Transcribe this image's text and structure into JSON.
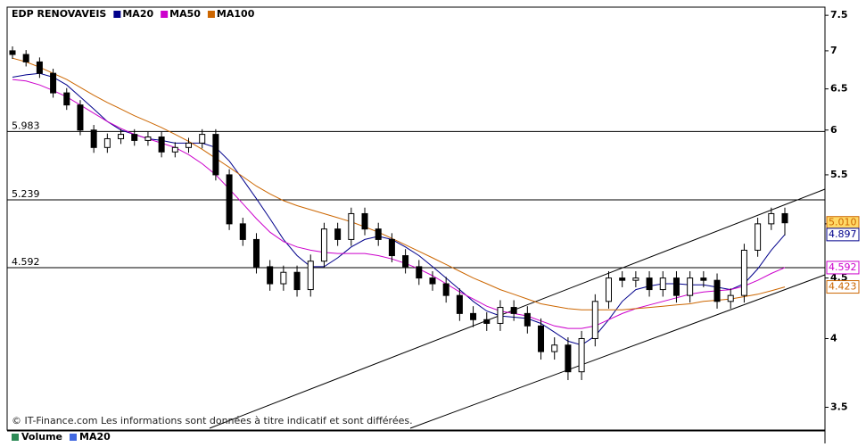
{
  "chart_data": {
    "type": "candlestick",
    "log_scale": true,
    "ylim": [
      3.36,
      7.62
    ],
    "yticks": [
      3.5,
      4,
      4.5,
      5,
      5.5,
      6,
      6.5,
      7,
      7.5
    ],
    "levels": [
      5.983,
      5.239,
      4.592
    ],
    "series": [
      {
        "name": "EDP RENOVAVEIS",
        "up_color": "#ffffff",
        "down_color": "#000000",
        "open": [
          7.0,
          6.95,
          6.85,
          6.7,
          6.45,
          6.3,
          6.0,
          5.8,
          5.9,
          5.95,
          5.88,
          5.92,
          5.75,
          5.8,
          5.85,
          5.95,
          5.5,
          5.0,
          4.85,
          4.6,
          4.45,
          4.55,
          4.4,
          4.65,
          4.95,
          4.85,
          5.1,
          4.95,
          4.85,
          4.7,
          4.6,
          4.5,
          4.45,
          4.35,
          4.2,
          4.15,
          4.12,
          4.25,
          4.2,
          4.1,
          3.9,
          3.95,
          3.75,
          4.0,
          4.3,
          4.5,
          4.48,
          4.5,
          4.4,
          4.5,
          4.35,
          4.5,
          4.48,
          4.3,
          4.35,
          4.75,
          5.0,
          5.1
        ],
        "high": [
          7.06,
          7.01,
          6.91,
          6.76,
          6.51,
          6.36,
          6.06,
          5.96,
          6.01,
          6.01,
          5.98,
          5.98,
          5.86,
          5.91,
          6.01,
          6.01,
          5.56,
          5.06,
          4.91,
          4.66,
          4.61,
          4.61,
          4.71,
          5.01,
          5.01,
          5.16,
          5.16,
          5.01,
          4.91,
          4.76,
          4.66,
          4.56,
          4.51,
          4.41,
          4.26,
          4.21,
          4.31,
          4.31,
          4.26,
          4.16,
          4.01,
          4.01,
          4.06,
          4.36,
          4.56,
          4.56,
          4.56,
          4.56,
          4.56,
          4.56,
          4.56,
          4.56,
          4.54,
          4.41,
          4.81,
          5.06,
          5.16,
          5.16
        ],
        "low": [
          6.89,
          6.79,
          6.64,
          6.39,
          6.24,
          5.94,
          5.74,
          5.74,
          5.84,
          5.82,
          5.82,
          5.69,
          5.69,
          5.74,
          5.79,
          5.44,
          4.94,
          4.79,
          4.54,
          4.39,
          4.39,
          4.34,
          4.34,
          4.59,
          4.79,
          4.79,
          4.89,
          4.79,
          4.64,
          4.54,
          4.44,
          4.39,
          4.29,
          4.14,
          4.09,
          4.06,
          4.06,
          4.14,
          4.04,
          3.84,
          3.84,
          3.69,
          3.69,
          3.94,
          4.24,
          4.42,
          4.42,
          4.34,
          4.34,
          4.29,
          4.29,
          4.42,
          4.24,
          4.24,
          4.29,
          4.69,
          4.94,
          4.89
        ],
        "close": [
          6.95,
          6.85,
          6.7,
          6.45,
          6.3,
          6.0,
          5.8,
          5.9,
          5.95,
          5.88,
          5.92,
          5.75,
          5.8,
          5.85,
          5.95,
          5.5,
          5.0,
          4.85,
          4.6,
          4.45,
          4.55,
          4.4,
          4.65,
          4.95,
          4.85,
          5.1,
          4.95,
          4.85,
          4.7,
          4.6,
          4.5,
          4.45,
          4.35,
          4.2,
          4.15,
          4.12,
          4.25,
          4.2,
          4.1,
          3.9,
          3.95,
          3.75,
          4.0,
          4.3,
          4.5,
          4.48,
          4.5,
          4.4,
          4.5,
          4.35,
          4.5,
          4.48,
          4.3,
          4.35,
          4.75,
          5.0,
          5.1,
          5.01
        ]
      },
      {
        "name": "MA20",
        "color": "#00008b",
        "values": [
          6.65,
          6.68,
          6.7,
          6.65,
          6.55,
          6.4,
          6.25,
          6.1,
          6.0,
          5.95,
          5.9,
          5.88,
          5.85,
          5.85,
          5.85,
          5.8,
          5.65,
          5.45,
          5.25,
          5.05,
          4.85,
          4.7,
          4.6,
          4.6,
          4.68,
          4.78,
          4.85,
          4.88,
          4.85,
          4.78,
          4.7,
          4.6,
          4.5,
          4.4,
          4.3,
          4.22,
          4.18,
          4.17,
          4.16,
          4.12,
          4.05,
          3.98,
          3.95,
          4.02,
          4.15,
          4.3,
          4.4,
          4.43,
          4.45,
          4.45,
          4.44,
          4.44,
          4.42,
          4.4,
          4.45,
          4.58,
          4.75,
          4.897
        ]
      },
      {
        "name": "MA50",
        "color": "#cc00cc",
        "values": [
          6.62,
          6.6,
          6.55,
          6.48,
          6.4,
          6.3,
          6.2,
          6.1,
          6.02,
          5.95,
          5.9,
          5.85,
          5.8,
          5.72,
          5.62,
          5.5,
          5.35,
          5.2,
          5.05,
          4.92,
          4.83,
          4.78,
          4.75,
          4.73,
          4.72,
          4.72,
          4.72,
          4.7,
          4.67,
          4.63,
          4.58,
          4.52,
          4.45,
          4.38,
          4.32,
          4.26,
          4.22,
          4.2,
          4.18,
          4.14,
          4.1,
          4.08,
          4.08,
          4.1,
          4.15,
          4.2,
          4.24,
          4.27,
          4.3,
          4.33,
          4.36,
          4.38,
          4.39,
          4.4,
          4.43,
          4.48,
          4.54,
          4.592
        ]
      },
      {
        "name": "MA100",
        "color": "#cc6600",
        "values": [
          6.9,
          6.85,
          6.78,
          6.7,
          6.62,
          6.52,
          6.42,
          6.33,
          6.25,
          6.17,
          6.1,
          6.03,
          5.95,
          5.87,
          5.78,
          5.68,
          5.58,
          5.48,
          5.38,
          5.3,
          5.23,
          5.18,
          5.14,
          5.1,
          5.06,
          5.02,
          4.97,
          4.92,
          4.86,
          4.8,
          4.74,
          4.68,
          4.62,
          4.56,
          4.5,
          4.45,
          4.4,
          4.36,
          4.32,
          4.28,
          4.26,
          4.24,
          4.23,
          4.23,
          4.23,
          4.23,
          4.24,
          4.25,
          4.26,
          4.27,
          4.28,
          4.3,
          4.31,
          4.32,
          4.34,
          4.36,
          4.39,
          4.423
        ]
      }
    ],
    "price_labels": [
      {
        "value": 5.01,
        "label": "5.010",
        "color": "#cc6600",
        "background": "#ffd966"
      },
      {
        "value": 4.897,
        "label": "4.897",
        "color": "#00008b",
        "background": "#ffffff"
      },
      {
        "value": 4.592,
        "label": "4.592",
        "color": "#cc00cc",
        "background": "#ffffff"
      },
      {
        "value": 4.423,
        "label": "4.423",
        "color": "#cc6600",
        "background": "#ffffff"
      }
    ],
    "footer": "© IT-Finance.com Les informations sont données à titre indicatif et sont différées.",
    "volume_legend": [
      {
        "name": "Volume",
        "color": "#2e8b57"
      },
      {
        "name": "MA20",
        "color": "#4169e1"
      }
    ]
  }
}
